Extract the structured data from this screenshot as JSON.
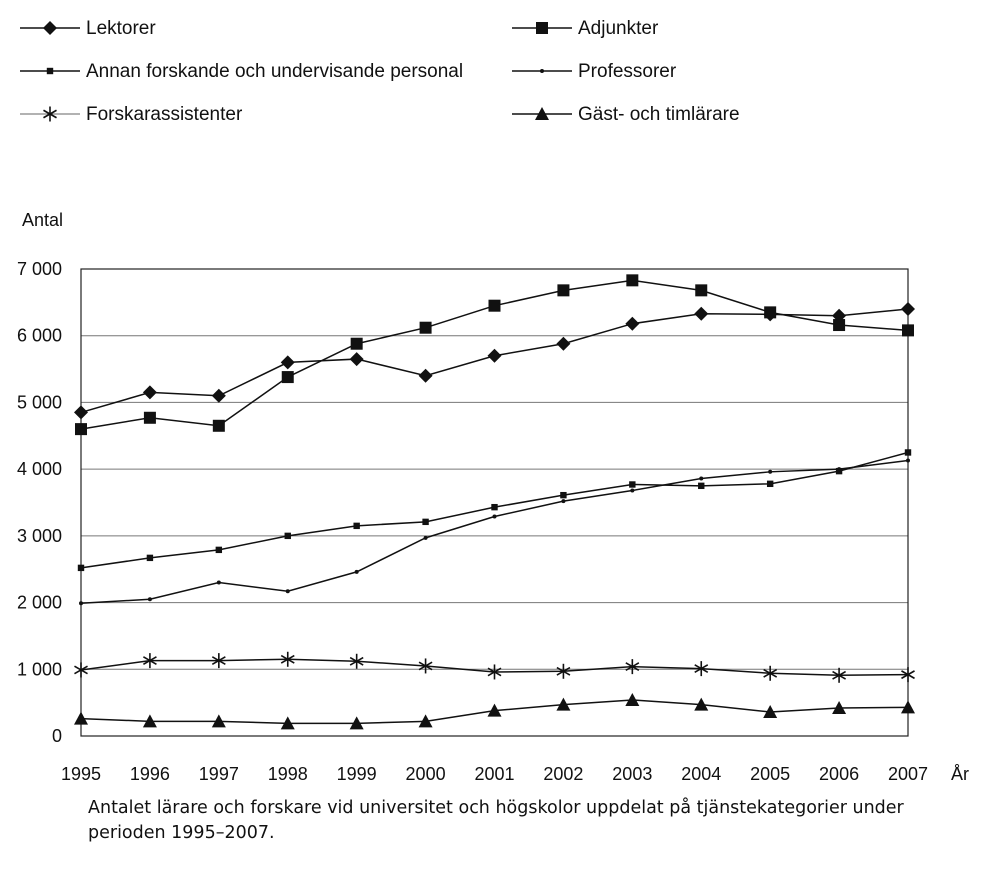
{
  "caption": "Antalet lärare och forskare vid universitet och högskolor uppdelat på tjänstekategorier under perioden 1995–2007.",
  "chart_data": {
    "type": "line",
    "title": "",
    "xlabel": "År",
    "ylabel": "Antal",
    "x": [
      "1995",
      "1996",
      "1997",
      "1998",
      "1999",
      "2000",
      "2001",
      "2002",
      "2003",
      "2004",
      "2005",
      "2006",
      "2007"
    ],
    "ylim": [
      0,
      7000
    ],
    "yticks": [
      0,
      1000,
      2000,
      3000,
      4000,
      5000,
      6000,
      7000
    ],
    "ytick_labels": [
      "0",
      "1 000",
      "2 000",
      "3 000",
      "4 000",
      "5 000",
      "6 000",
      "7 000"
    ],
    "grid": true,
    "legend_position": "top",
    "series": [
      {
        "name": "Lektorer",
        "marker": "diamond",
        "values": [
          4850,
          5150,
          5100,
          5600,
          5650,
          5400,
          5700,
          5880,
          6180,
          6330,
          6320,
          6300,
          6400
        ]
      },
      {
        "name": "Adjunkter",
        "marker": "square",
        "values": [
          4600,
          4770,
          4650,
          5380,
          5880,
          6120,
          6450,
          6680,
          6830,
          6680,
          6350,
          6160,
          6080
        ]
      },
      {
        "name": "Annan forskande och undervisande personal",
        "marker": "small-square",
        "values": [
          2520,
          2670,
          2790,
          3000,
          3150,
          3210,
          3430,
          3610,
          3770,
          3750,
          3780,
          3970,
          4250
        ]
      },
      {
        "name": "Professorer",
        "marker": "dot",
        "values": [
          1990,
          2050,
          2300,
          2170,
          2460,
          2970,
          3290,
          3520,
          3680,
          3860,
          3960,
          4000,
          4130
        ]
      },
      {
        "name": "Forskarassistenter",
        "marker": "asterisk",
        "values": [
          990,
          1130,
          1130,
          1150,
          1120,
          1050,
          960,
          970,
          1040,
          1010,
          940,
          910,
          920
        ]
      },
      {
        "name": "Gäst- och timlärare",
        "marker": "triangle",
        "values": [
          260,
          220,
          220,
          190,
          190,
          220,
          380,
          470,
          540,
          470,
          360,
          420,
          430
        ]
      }
    ]
  }
}
